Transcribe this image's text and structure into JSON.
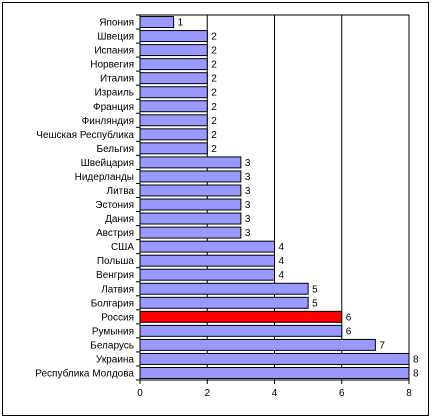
{
  "chart_data": {
    "type": "bar",
    "orientation": "horizontal",
    "categories": [
      "Япония",
      "Швеция",
      "Испания",
      "Норвегия",
      "Италия",
      "Израиль",
      "Франция",
      "Финляндия",
      "Чешская Республика",
      "Бельгия",
      "Швейцария",
      "Нидерланды",
      "Литва",
      "Эстония",
      "Дания",
      "Австрия",
      "США",
      "Польша",
      "Венгрия",
      "Латвия",
      "Болгария",
      "Россия",
      "Румыния",
      "Беларусь",
      "Украина",
      "Республика Молдова"
    ],
    "values": [
      1,
      2,
      2,
      2,
      2,
      2,
      2,
      2,
      2,
      2,
      3,
      3,
      3,
      3,
      3,
      3,
      4,
      4,
      4,
      5,
      5,
      6,
      6,
      7,
      8,
      8
    ],
    "value_labels": [
      "1",
      "2",
      "2",
      "2",
      "2",
      "2",
      "2",
      "2",
      "2",
      "2",
      "3",
      "3",
      "3",
      "3",
      "3",
      "3",
      "4",
      "4",
      "4",
      "5",
      "5",
      "6",
      "6",
      "7",
      "8",
      "8"
    ],
    "highlight": "Россия",
    "xlim": [
      0,
      8
    ],
    "xticks": [
      "0",
      "2",
      "4",
      "6",
      "8"
    ],
    "grid": "vertical",
    "legend": "none",
    "title": "",
    "xlabel": "",
    "ylabel": "",
    "colors": {
      "bar": "#9999ff",
      "highlight": "#ff0000",
      "edge": "#000000",
      "grid": "#000000"
    }
  }
}
